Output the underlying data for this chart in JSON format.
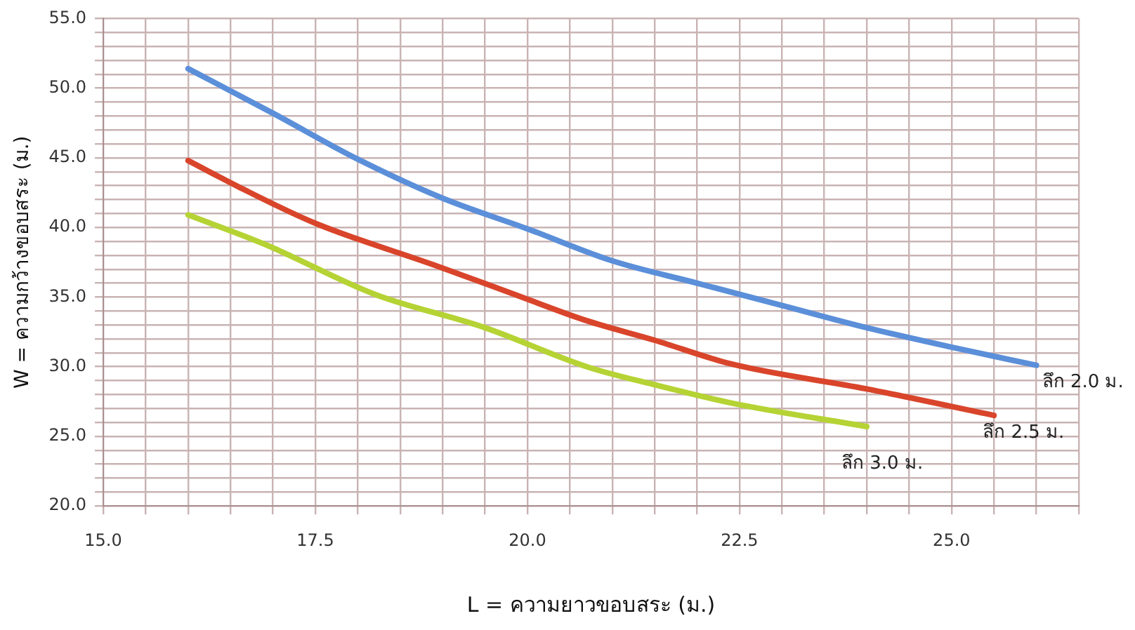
{
  "chart_data": {
    "type": "line",
    "xlabel": "L = ความยาวขอบสระ (ม.)",
    "ylabel": "W = ความกว้างขอบสระ (ม.)",
    "xlim": [
      15,
      26.5
    ],
    "ylim": [
      20,
      55
    ],
    "xticks": [
      {
        "value": 15,
        "label": "15.0"
      },
      {
        "value": 15.5,
        "label": null
      },
      {
        "value": 16,
        "label": null
      },
      {
        "value": 16.5,
        "label": null
      },
      {
        "value": 17,
        "label": null
      },
      {
        "value": 17.5,
        "label": "17.5"
      },
      {
        "value": 18,
        "label": null
      },
      {
        "value": 18.5,
        "label": null
      },
      {
        "value": 19,
        "label": null
      },
      {
        "value": 19.5,
        "label": null
      },
      {
        "value": 20,
        "label": "20.0"
      },
      {
        "value": 20.5,
        "label": null
      },
      {
        "value": 21,
        "label": null
      },
      {
        "value": 21.5,
        "label": null
      },
      {
        "value": 22,
        "label": null
      },
      {
        "value": 22.5,
        "label": "22.5"
      },
      {
        "value": 23,
        "label": null
      },
      {
        "value": 23.5,
        "label": null
      },
      {
        "value": 24,
        "label": null
      },
      {
        "value": 24.5,
        "label": null
      },
      {
        "value": 25,
        "label": "25.0"
      },
      {
        "value": 25.5,
        "label": null
      },
      {
        "value": 26,
        "label": null
      },
      {
        "value": 26.5,
        "label": null
      }
    ],
    "yticks": [
      {
        "value": 20,
        "label": "20.0"
      },
      {
        "value": 21,
        "label": null
      },
      {
        "value": 22,
        "label": null
      },
      {
        "value": 23,
        "label": null
      },
      {
        "value": 24,
        "label": null
      },
      {
        "value": 25,
        "label": "25.0"
      },
      {
        "value": 26,
        "label": null
      },
      {
        "value": 27,
        "label": null
      },
      {
        "value": 28,
        "label": null
      },
      {
        "value": 29,
        "label": null
      },
      {
        "value": 30,
        "label": "30.0"
      },
      {
        "value": 31,
        "label": null
      },
      {
        "value": 32,
        "label": null
      },
      {
        "value": 33,
        "label": null
      },
      {
        "value": 34,
        "label": null
      },
      {
        "value": 35,
        "label": "35.0"
      },
      {
        "value": 36,
        "label": null
      },
      {
        "value": 37,
        "label": null
      },
      {
        "value": 38,
        "label": null
      },
      {
        "value": 39,
        "label": null
      },
      {
        "value": 40,
        "label": "40.0"
      },
      {
        "value": 41,
        "label": null
      },
      {
        "value": 42,
        "label": null
      },
      {
        "value": 43,
        "label": null
      },
      {
        "value": 44,
        "label": null
      },
      {
        "value": 45,
        "label": "45.0"
      },
      {
        "value": 46,
        "label": null
      },
      {
        "value": 47,
        "label": null
      },
      {
        "value": 48,
        "label": null
      },
      {
        "value": 49,
        "label": null
      },
      {
        "value": 50,
        "label": "50.0"
      },
      {
        "value": 51,
        "label": null
      },
      {
        "value": 52,
        "label": null
      },
      {
        "value": 53,
        "label": null
      },
      {
        "value": 54,
        "label": null
      },
      {
        "value": 55,
        "label": "55.0"
      }
    ],
    "grid": true,
    "legend": false,
    "marker": "none",
    "line_style": "solid",
    "series": [
      {
        "name": "ลึก 2.0 ม.",
        "color": "#5b8fd9",
        "x": [
          16,
          17,
          18,
          19,
          20,
          21,
          22,
          23,
          24,
          25,
          26
        ],
        "values": [
          51.4,
          48.2,
          44.9,
          42.1,
          39.9,
          37.6,
          36.0,
          34.4,
          32.8,
          31.4,
          30.1
        ]
      },
      {
        "name": "ลึก 2.5 ม.",
        "color": "#d9452b",
        "x": [
          16,
          16.6,
          17.5,
          18.9,
          19.8,
          20.7,
          21.5,
          22.4,
          24,
          25.5
        ],
        "values": [
          44.8,
          42.9,
          40.3,
          37.3,
          35.3,
          33.3,
          31.9,
          30.2,
          28.4,
          26.5
        ]
      },
      {
        "name": "ลึก 3.0 ม.",
        "color": "#b5d334",
        "x": [
          16,
          16.9,
          18.2,
          19.5,
          20.7,
          21.5,
          22.4,
          24
        ],
        "values": [
          40.9,
          38.8,
          35.2,
          32.8,
          30.0,
          28.7,
          27.4,
          25.7
        ]
      }
    ]
  }
}
